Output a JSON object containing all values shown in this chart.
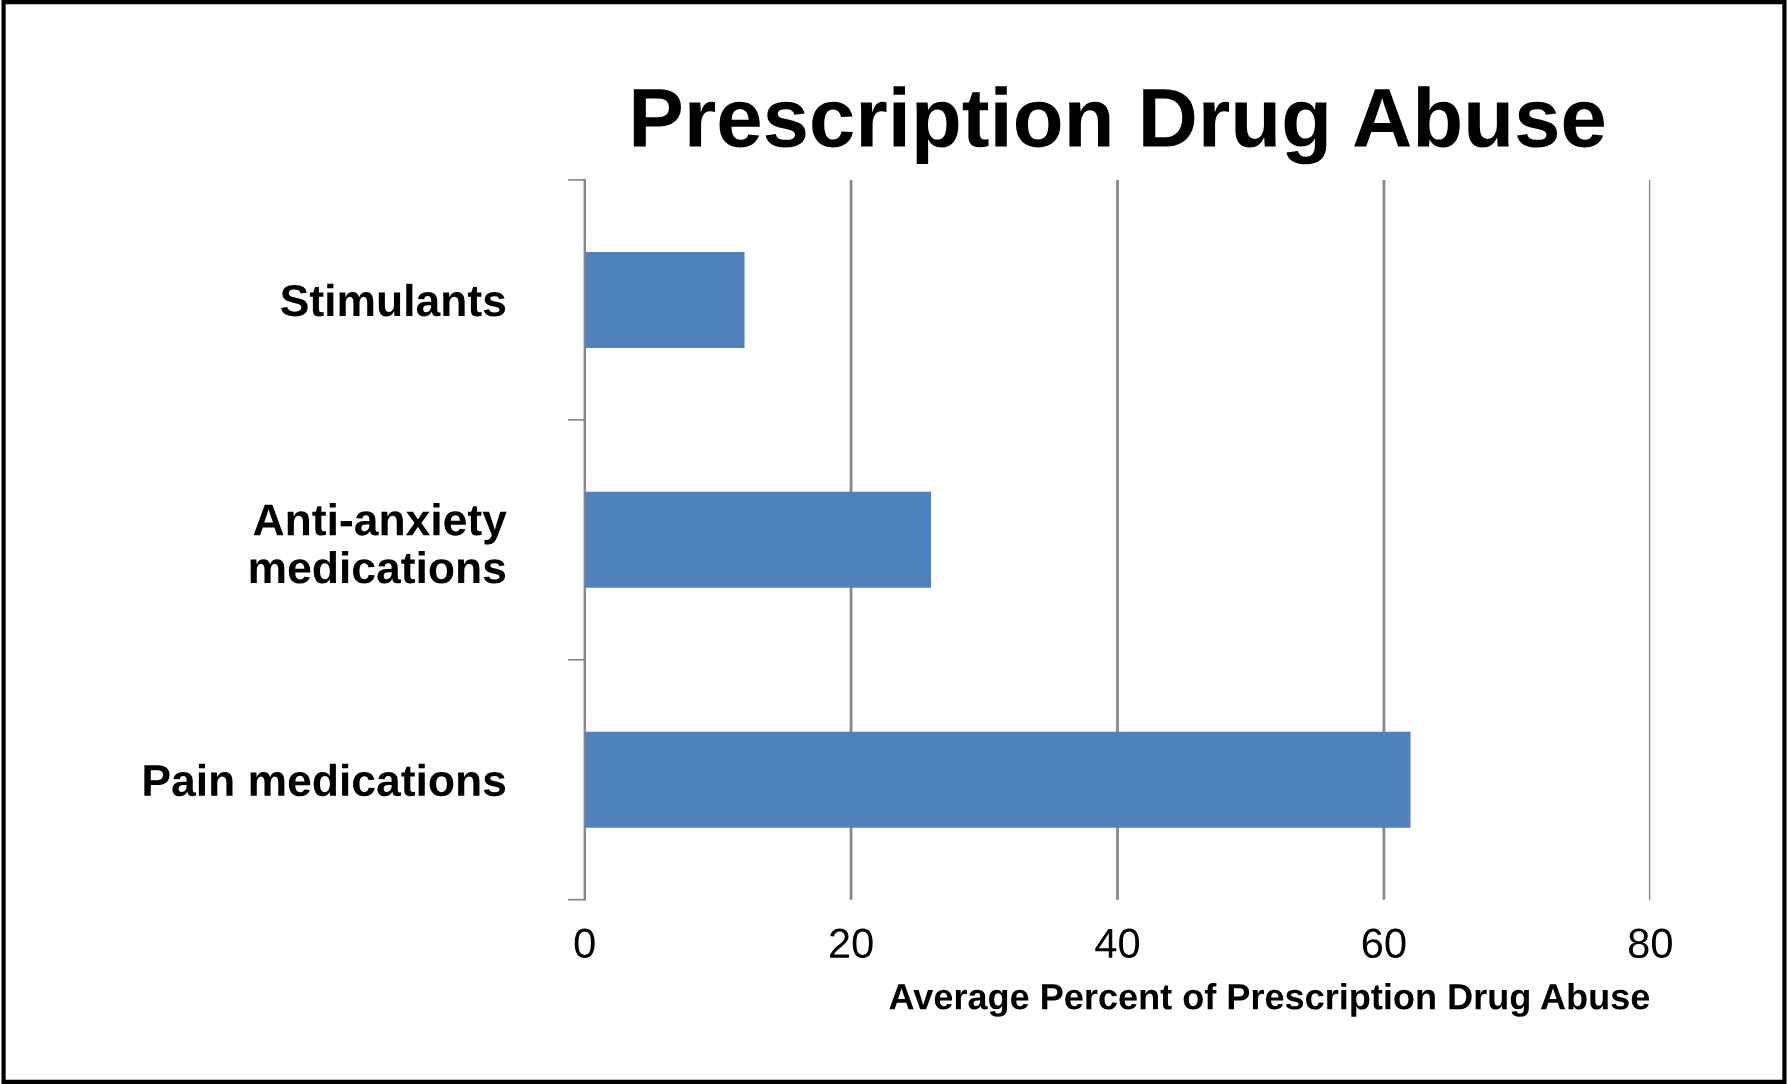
{
  "chart_data": {
    "type": "bar",
    "orientation": "horizontal",
    "title": "Prescription Drug Abuse",
    "xlabel": "Average Percent of Prescription Drug Abuse",
    "categories": [
      "Stimulants",
      "Anti-anxiety\nmedications",
      "Pain medications"
    ],
    "values": [
      12,
      26,
      62
    ],
    "color": "#4f81bd",
    "xlim": [
      0,
      80
    ],
    "xticks": [
      0,
      20,
      40,
      60,
      80
    ],
    "grid": "x"
  }
}
